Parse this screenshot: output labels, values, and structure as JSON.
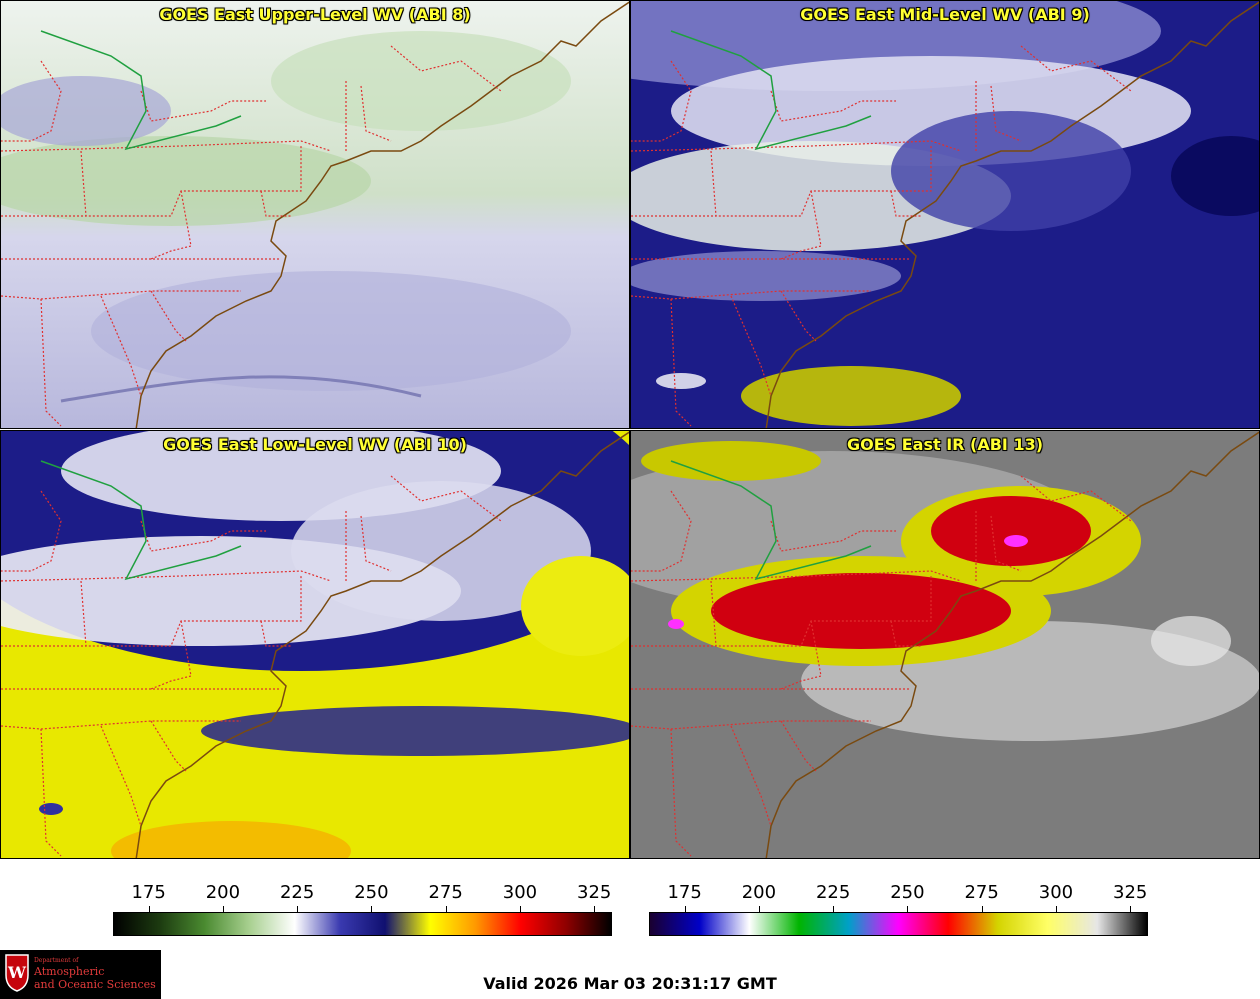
{
  "panels": [
    {
      "title": "GOES East Upper-Level WV (ABI 8)"
    },
    {
      "title": "GOES East Mid-Level WV (ABI 9)"
    },
    {
      "title": "GOES East Low-Level WV (ABI 10)"
    },
    {
      "title": "GOES East IR (ABI 13)"
    }
  ],
  "colorbar_wv": {
    "ticks": [
      "175",
      "200",
      "225",
      "250",
      "275",
      "300",
      "325"
    ],
    "range": [
      163,
      331
    ],
    "colors": [
      "#000000",
      "#1c3a10",
      "#4a8a30",
      "#a8d090",
      "#ffffff",
      "#3a3ab0",
      "#101070",
      "#ffff00",
      "#ff9900",
      "#ff0000",
      "#900000",
      "#000000"
    ]
  },
  "colorbar_ir": {
    "ticks": [
      "175",
      "200",
      "225",
      "250",
      "275",
      "300",
      "325"
    ],
    "range": [
      163,
      331
    ],
    "colors": [
      "#1a0030",
      "#0000c8",
      "#ffffff",
      "#00b400",
      "#00a0c8",
      "#ff00ff",
      "#ff0000",
      "#d4d400",
      "#ffff66",
      "#e6e6e6",
      "#000000"
    ]
  },
  "valid": "Valid 2026 Mar 03 20:31:17 GMT",
  "logo": {
    "line1": "Department of",
    "line2": "Atmospheric",
    "line3": "and Oceanic Sciences",
    "crest_letter": "W"
  },
  "colors": {
    "title_text": "#ffff33",
    "state_borders": "#e03030",
    "coastline": "#7a4a10",
    "intl_border": "#20a040"
  }
}
